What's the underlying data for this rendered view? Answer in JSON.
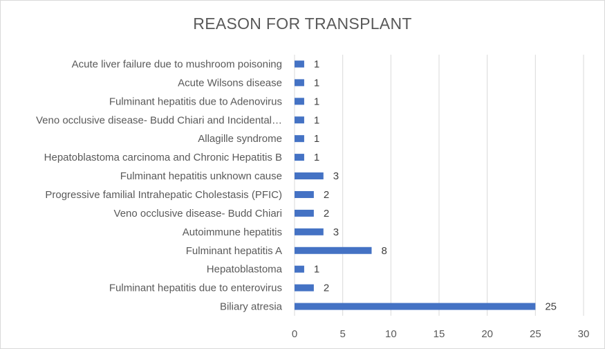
{
  "chart_data": {
    "type": "bar",
    "orientation": "horizontal",
    "title": "REASON FOR TRANSPLANT",
    "xlabel": "",
    "ylabel": "",
    "categories": [
      "Acute liver failure due to mushroom poisoning",
      "Acute Wilsons disease",
      "Fulminant hepatitis due to Adenovirus",
      "Veno occlusive disease- Budd Chiari and Incidental…",
      "Allagille syndrome",
      "Hepatoblastoma carcinoma and Chronic Hepatitis B",
      "Fulminant hepatitis unknown cause",
      "Progressive familial Intrahepatic Cholestasis (PFIC)",
      "Veno occlusive disease- Budd Chiari",
      "Autoimmune hepatitis",
      "Fulminant hepatitis A",
      "Hepatoblastoma",
      "Fulminant hepatitis due to enterovirus",
      "Biliary atresia"
    ],
    "values": [
      1,
      1,
      1,
      1,
      1,
      1,
      3,
      2,
      2,
      3,
      8,
      1,
      2,
      25
    ],
    "xlim": [
      0,
      30
    ],
    "xticks": [
      0,
      5,
      10,
      15,
      20,
      25,
      30
    ],
    "grid": "vertical",
    "legend": "none",
    "data_labels": true,
    "bar_color": "#4472c4"
  }
}
